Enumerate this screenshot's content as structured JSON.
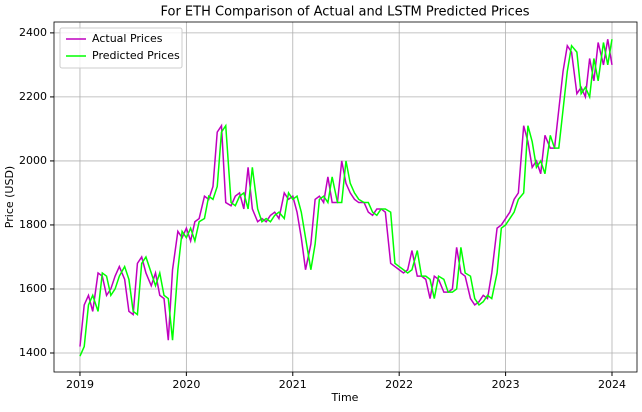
{
  "chart_data": {
    "type": "line",
    "title": "For ETH Comparison of Actual and LSTM Predicted Prices",
    "xlabel": "Time",
    "ylabel": "Price (USD)",
    "x": [
      2019.0,
      2019.04,
      2019.08,
      2019.12,
      2019.17,
      2019.21,
      2019.25,
      2019.29,
      2019.33,
      2019.37,
      2019.42,
      2019.46,
      2019.5,
      2019.54,
      2019.58,
      2019.62,
      2019.67,
      2019.71,
      2019.75,
      2019.79,
      2019.83,
      2019.87,
      2019.92,
      2019.96,
      2020.0,
      2020.04,
      2020.08,
      2020.12,
      2020.17,
      2020.21,
      2020.25,
      2020.29,
      2020.33,
      2020.37,
      2020.42,
      2020.46,
      2020.5,
      2020.54,
      2020.58,
      2020.62,
      2020.67,
      2020.71,
      2020.75,
      2020.79,
      2020.83,
      2020.87,
      2020.92,
      2020.96,
      2021.0,
      2021.04,
      2021.08,
      2021.12,
      2021.17,
      2021.21,
      2021.25,
      2021.29,
      2021.33,
      2021.37,
      2021.42,
      2021.46,
      2021.5,
      2021.54,
      2021.58,
      2021.62,
      2021.67,
      2021.71,
      2021.75,
      2021.79,
      2021.83,
      2021.87,
      2021.92,
      2021.96,
      2022.0,
      2022.04,
      2022.08,
      2022.12,
      2022.17,
      2022.21,
      2022.25,
      2022.29,
      2022.33,
      2022.37,
      2022.42,
      2022.46,
      2022.5,
      2022.54,
      2022.58,
      2022.62,
      2022.67,
      2022.71,
      2022.75,
      2022.79,
      2022.83,
      2022.87,
      2022.92,
      2022.96,
      2023.0,
      2023.04,
      2023.08,
      2023.12,
      2023.17,
      2023.21,
      2023.25,
      2023.29,
      2023.33,
      2023.37,
      2023.42,
      2023.46,
      2023.5,
      2023.54,
      2023.58,
      2023.62,
      2023.67,
      2023.71,
      2023.75,
      2023.79,
      2023.83,
      2023.87,
      2023.92,
      2023.96,
      2024.0
    ],
    "series": [
      {
        "name": "Actual Prices",
        "color": "#bf00bf",
        "values": [
          1420,
          1550,
          1580,
          1530,
          1650,
          1640,
          1580,
          1600,
          1640,
          1670,
          1630,
          1530,
          1520,
          1680,
          1700,
          1650,
          1610,
          1650,
          1580,
          1570,
          1440,
          1660,
          1780,
          1760,
          1790,
          1750,
          1810,
          1820,
          1890,
          1880,
          1920,
          2090,
          2110,
          1870,
          1860,
          1890,
          1900,
          1850,
          1980,
          1850,
          1810,
          1820,
          1810,
          1830,
          1840,
          1820,
          1900,
          1880,
          1890,
          1840,
          1760,
          1660,
          1740,
          1880,
          1890,
          1870,
          1950,
          1870,
          1870,
          2000,
          1930,
          1900,
          1880,
          1870,
          1870,
          1840,
          1830,
          1850,
          1850,
          1840,
          1680,
          1670,
          1660,
          1650,
          1660,
          1720,
          1640,
          1640,
          1630,
          1570,
          1640,
          1630,
          1590,
          1590,
          1600,
          1730,
          1650,
          1640,
          1570,
          1550,
          1560,
          1580,
          1570,
          1650,
          1790,
          1800,
          1820,
          1840,
          1880,
          1900,
          2110,
          2060,
          1980,
          2000,
          1960,
          2080,
          2040,
          2040,
          2160,
          2280,
          2360,
          2340,
          2210,
          2230,
          2200,
          2320,
          2250,
          2370,
          2300,
          2380,
          2300
        ]
      },
      {
        "name": "Predicted Prices",
        "color": "#00ff00",
        "values": [
          1390,
          1420,
          1550,
          1580,
          1530,
          1650,
          1640,
          1580,
          1600,
          1640,
          1670,
          1630,
          1530,
          1520,
          1680,
          1700,
          1650,
          1610,
          1650,
          1580,
          1570,
          1440,
          1660,
          1780,
          1760,
          1790,
          1750,
          1810,
          1820,
          1890,
          1880,
          1920,
          2090,
          2110,
          1870,
          1860,
          1890,
          1900,
          1850,
          1980,
          1850,
          1810,
          1820,
          1810,
          1830,
          1840,
          1820,
          1900,
          1880,
          1890,
          1840,
          1760,
          1660,
          1740,
          1880,
          1890,
          1870,
          1950,
          1870,
          1870,
          2000,
          1930,
          1900,
          1880,
          1870,
          1870,
          1840,
          1830,
          1850,
          1850,
          1840,
          1680,
          1670,
          1660,
          1650,
          1660,
          1720,
          1640,
          1640,
          1630,
          1570,
          1640,
          1630,
          1590,
          1590,
          1600,
          1730,
          1650,
          1640,
          1570,
          1550,
          1560,
          1580,
          1570,
          1650,
          1790,
          1800,
          1820,
          1840,
          1880,
          1900,
          2110,
          2060,
          1980,
          2000,
          1960,
          2080,
          2040,
          2040,
          2160,
          2280,
          2360,
          2340,
          2210,
          2230,
          2200,
          2320,
          2250,
          2370,
          2300,
          2380
        ]
      }
    ],
    "xlim": [
      2018.756,
      2024.235
    ],
    "xticks": [
      2019,
      2020,
      2021,
      2022,
      2023,
      2024
    ],
    "ylim": [
      1340.6,
      2434
    ],
    "yticks": [
      1400,
      1600,
      1800,
      2000,
      2200,
      2400
    ],
    "grid": true,
    "legend": "upper left"
  }
}
